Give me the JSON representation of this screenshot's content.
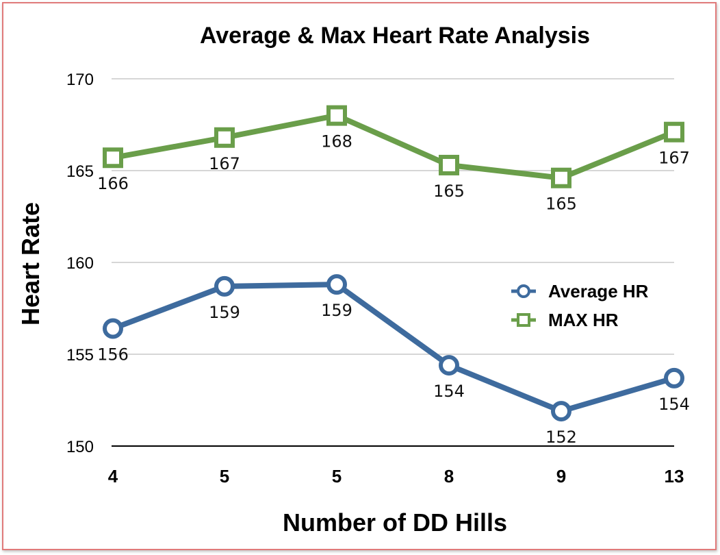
{
  "chart_data": {
    "type": "line",
    "title": "Average & Max Heart Rate Analysis",
    "xlabel": "Number of DD Hills",
    "ylabel": "Heart Rate",
    "categories": [
      "4",
      "5",
      "5",
      "8",
      "9",
      "13"
    ],
    "ylim": [
      150,
      170
    ],
    "yticks": [
      150,
      155,
      160,
      165,
      170
    ],
    "grid": true,
    "legend": "right",
    "series": [
      {
        "name": "Average HR",
        "values": [
          156.4,
          158.7,
          158.8,
          154.4,
          151.9,
          153.7
        ],
        "labels": [
          "156",
          "159",
          "159",
          "154",
          "152",
          "154"
        ],
        "color": "#3e6b9e",
        "marker": "circle"
      },
      {
        "name": "MAX HR",
        "values": [
          165.7,
          166.8,
          168.0,
          165.3,
          164.6,
          167.1
        ],
        "labels": [
          "166",
          "167",
          "168",
          "165",
          "165",
          "167"
        ],
        "color": "#6a9e4a",
        "marker": "square"
      }
    ]
  }
}
